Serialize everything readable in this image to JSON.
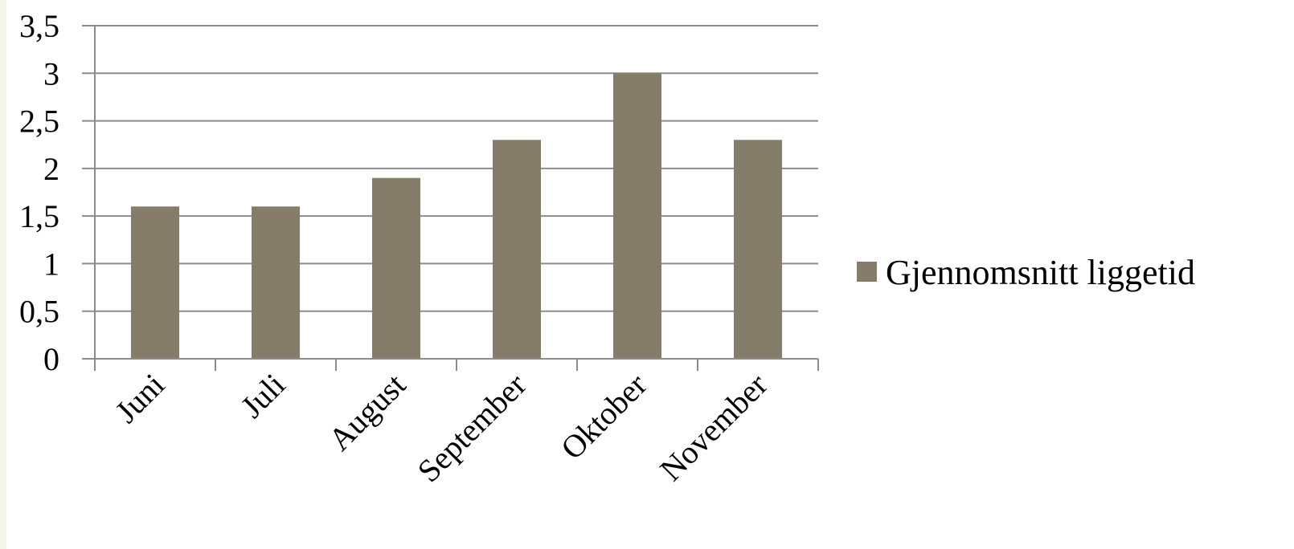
{
  "chart_data": {
    "type": "bar",
    "categories": [
      "Juni",
      "Juli",
      "August",
      "September",
      "Oktober",
      "November"
    ],
    "series": [
      {
        "name": "Gjennomsnitt liggetid",
        "values": [
          1.6,
          1.6,
          1.9,
          2.3,
          3.0,
          2.3
        ]
      }
    ],
    "ylim": [
      0,
      3.5
    ],
    "yticks": [
      "0",
      "0,5",
      "1",
      "1,5",
      "2",
      "2,5",
      "3",
      "3,5"
    ],
    "ytick_values": [
      0,
      0.5,
      1,
      1.5,
      2,
      2.5,
      3,
      3.5
    ],
    "grid": true,
    "legend_position": "right",
    "bar_color": "#857d6a",
    "grid_color": "#8c8c8c",
    "title": "",
    "xlabel": "",
    "ylabel": ""
  }
}
